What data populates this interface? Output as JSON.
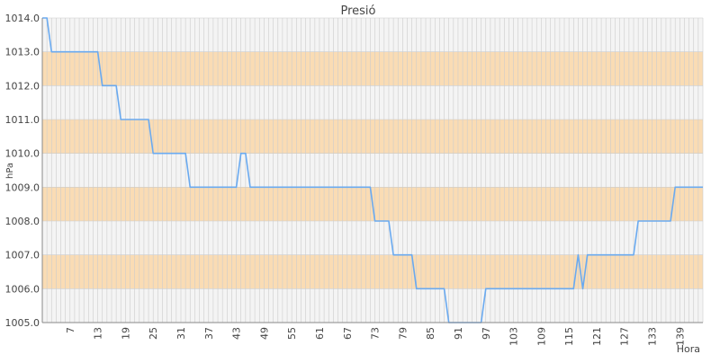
{
  "chart_data": {
    "type": "line",
    "title": "Presió",
    "xlabel": "Hora",
    "ylabel": "hPa",
    "ylim": [
      1005.0,
      1014.0
    ],
    "xlim": [
      1,
      144
    ],
    "y_ticks": [
      "1005.0",
      "1006.0",
      "1007.0",
      "1008.0",
      "1009.0",
      "1010.0",
      "1011.0",
      "1012.0",
      "1013.0",
      "1014.0"
    ],
    "x_ticks": [
      7,
      13,
      19,
      25,
      31,
      37,
      43,
      49,
      55,
      61,
      67,
      73,
      79,
      85,
      91,
      97,
      103,
      109,
      115,
      121,
      127,
      133,
      139
    ],
    "grid": true,
    "band_color": "#fadcb4",
    "plot_bg": "#f4f4f4",
    "grid_color": "#cccccc",
    "series": [
      {
        "color": "#6aaaf0",
        "points": [
          [
            1,
            1014
          ],
          [
            2,
            1014
          ],
          [
            3,
            1013
          ],
          [
            13,
            1013
          ],
          [
            14,
            1012
          ],
          [
            17,
            1012
          ],
          [
            18,
            1011
          ],
          [
            24,
            1011
          ],
          [
            25,
            1010
          ],
          [
            32,
            1010
          ],
          [
            33,
            1009
          ],
          [
            43,
            1009
          ],
          [
            44,
            1010
          ],
          [
            45,
            1010
          ],
          [
            46,
            1009
          ],
          [
            72,
            1009
          ],
          [
            73,
            1008
          ],
          [
            76,
            1008
          ],
          [
            77,
            1007
          ],
          [
            81,
            1007
          ],
          [
            82,
            1006
          ],
          [
            88,
            1006
          ],
          [
            89,
            1005
          ],
          [
            96,
            1005
          ],
          [
            97,
            1006
          ],
          [
            116,
            1006
          ],
          [
            117,
            1007
          ],
          [
            118,
            1006
          ],
          [
            119,
            1007
          ],
          [
            129,
            1007
          ],
          [
            130,
            1008
          ],
          [
            137,
            1008
          ],
          [
            138,
            1009
          ],
          [
            144,
            1009
          ]
        ]
      }
    ]
  }
}
